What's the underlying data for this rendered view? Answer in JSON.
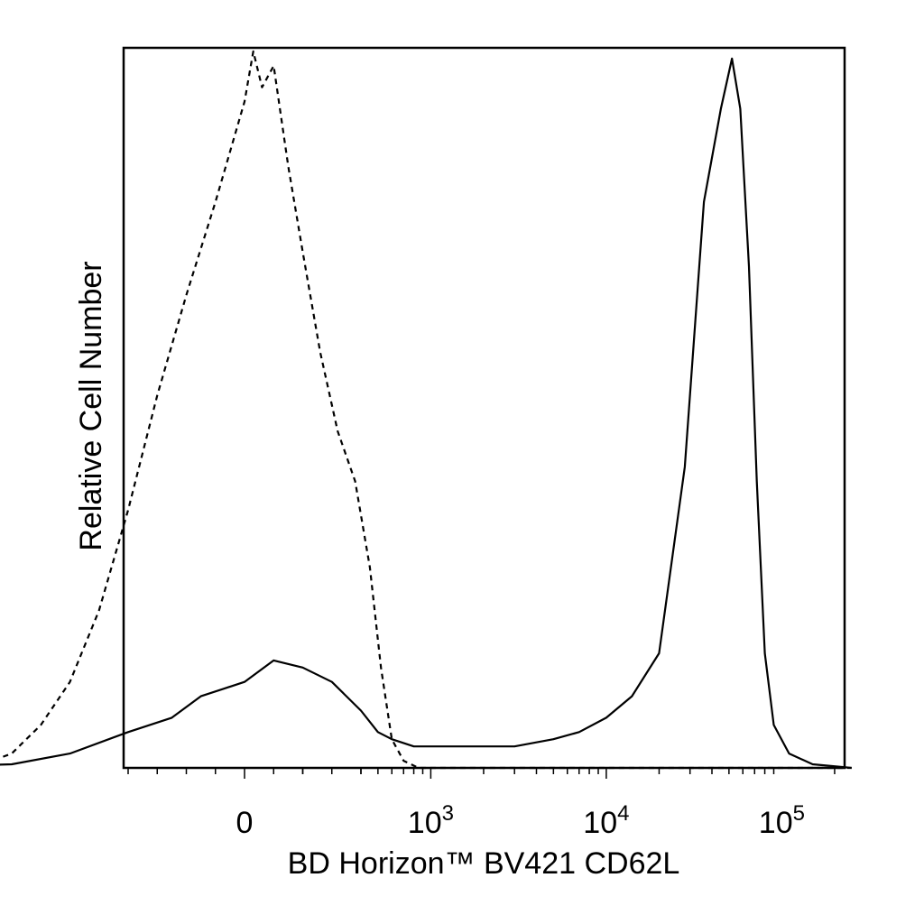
{
  "chart_data": {
    "type": "line",
    "title": "",
    "xlabel": "BD Horizon™ BV421 CD62L",
    "ylabel": "Relative Cell Number",
    "x_scale": "biexponential",
    "xlim": [
      -1200,
      250000
    ],
    "ylim": [
      0,
      100
    ],
    "grid": false,
    "x_tick_labels": [
      {
        "value": 0,
        "base": "0",
        "exp": ""
      },
      {
        "value": 1000,
        "base": "10",
        "exp": "3"
      },
      {
        "value": 10000,
        "base": "10",
        "exp": "4"
      },
      {
        "value": 100000,
        "base": "10",
        "exp": "5"
      }
    ],
    "series": [
      {
        "style": "dashed",
        "color": "#000000",
        "points": [
          [
            -1200,
            0
          ],
          [
            -900,
            0.5
          ],
          [
            -800,
            2
          ],
          [
            -700,
            6
          ],
          [
            -600,
            12
          ],
          [
            -500,
            22
          ],
          [
            -400,
            36
          ],
          [
            -300,
            52
          ],
          [
            -200,
            66
          ],
          [
            -100,
            79
          ],
          [
            -50,
            86
          ],
          [
            0,
            93
          ],
          [
            30,
            100
          ],
          [
            60,
            95
          ],
          [
            100,
            98
          ],
          [
            150,
            84
          ],
          [
            200,
            72
          ],
          [
            260,
            58
          ],
          [
            320,
            47
          ],
          [
            380,
            40
          ],
          [
            450,
            28
          ],
          [
            520,
            14
          ],
          [
            600,
            4
          ],
          [
            700,
            1
          ],
          [
            850,
            0
          ],
          [
            1000,
            0
          ],
          [
            250000,
            0
          ]
        ]
      },
      {
        "style": "solid",
        "color": "#000000",
        "points": [
          [
            -1200,
            0
          ],
          [
            -800,
            0.5
          ],
          [
            -600,
            2
          ],
          [
            -400,
            5
          ],
          [
            -250,
            7
          ],
          [
            -150,
            10
          ],
          [
            0,
            12
          ],
          [
            100,
            15
          ],
          [
            200,
            14
          ],
          [
            300,
            12
          ],
          [
            400,
            8
          ],
          [
            500,
            5
          ],
          [
            600,
            4
          ],
          [
            800,
            3
          ],
          [
            1000,
            3
          ],
          [
            1500,
            3
          ],
          [
            2000,
            3
          ],
          [
            3000,
            3
          ],
          [
            5000,
            4
          ],
          [
            7000,
            5
          ],
          [
            10000,
            7
          ],
          [
            14000,
            10
          ],
          [
            20000,
            16
          ],
          [
            28000,
            42
          ],
          [
            36000,
            79
          ],
          [
            45000,
            92
          ],
          [
            52000,
            99
          ],
          [
            58000,
            92
          ],
          [
            65000,
            70
          ],
          [
            72000,
            40
          ],
          [
            80000,
            16
          ],
          [
            90000,
            6
          ],
          [
            110000,
            2
          ],
          [
            150000,
            0.5
          ],
          [
            250000,
            0
          ]
        ]
      }
    ]
  }
}
